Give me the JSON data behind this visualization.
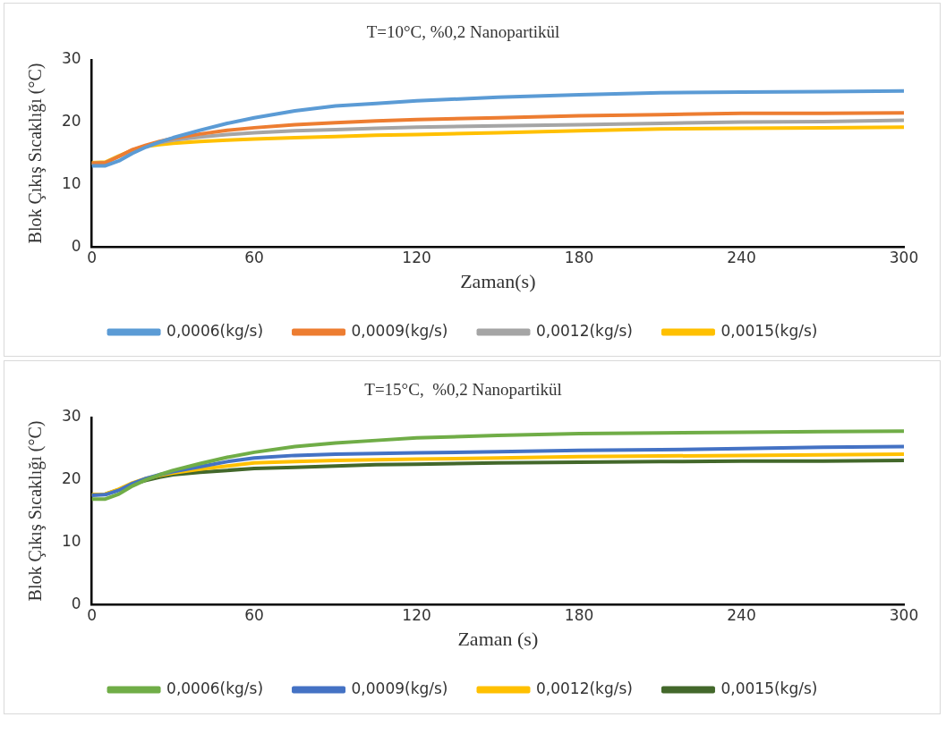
{
  "chart_data": [
    {
      "type": "line",
      "title": "T=10°C, %0,2 Nanopartikül",
      "xlabel": "Zaman(s)",
      "ylabel": "Blok Çıkış Sıcaklığı (°C)",
      "x": [
        0,
        5,
        10,
        15,
        20,
        25,
        30,
        40,
        50,
        60,
        75,
        90,
        105,
        120,
        150,
        180,
        210,
        240,
        270,
        300
      ],
      "xlim": [
        0,
        300
      ],
      "xticks": [
        0,
        60,
        120,
        180,
        240,
        300
      ],
      "ylim": [
        0,
        30
      ],
      "yticks": [
        0,
        10,
        20,
        30
      ],
      "grid": false,
      "legend": "bottom",
      "series": [
        {
          "name": "0,0006(kg/s)",
          "color": "#5b9bd5",
          "values": [
            13.0,
            13.0,
            13.8,
            15.0,
            16.0,
            16.8,
            17.5,
            18.7,
            19.8,
            20.7,
            21.8,
            22.6,
            23.0,
            23.4,
            24.0,
            24.4,
            24.7,
            24.8,
            24.9,
            25.0
          ]
        },
        {
          "name": "0,0009(kg/s)",
          "color": "#ed7d31",
          "values": [
            13.4,
            13.5,
            14.5,
            15.6,
            16.3,
            16.9,
            17.4,
            18.1,
            18.7,
            19.1,
            19.6,
            19.9,
            20.2,
            20.4,
            20.7,
            21.0,
            21.2,
            21.4,
            21.4,
            21.5
          ]
        },
        {
          "name": "0,0012(kg/s)",
          "color": "#a5a5a5",
          "values": [
            13.4,
            13.5,
            14.5,
            15.5,
            16.2,
            16.7,
            17.1,
            17.6,
            18.0,
            18.3,
            18.6,
            18.8,
            19.0,
            19.2,
            19.4,
            19.6,
            19.8,
            20.0,
            20.1,
            20.3
          ]
        },
        {
          "name": "0,0015(kg/s)",
          "color": "#ffc000",
          "values": [
            13.5,
            13.6,
            14.6,
            15.5,
            16.1,
            16.4,
            16.6,
            16.9,
            17.1,
            17.3,
            17.5,
            17.7,
            17.9,
            18.0,
            18.3,
            18.6,
            18.9,
            19.0,
            19.1,
            19.2
          ]
        }
      ]
    },
    {
      "type": "line",
      "title": "T=15°C,  %0,2 Nanopartikül",
      "xlabel": "Zaman (s)",
      "ylabel": "Blok Çıkış Sıcaklığı (°C)",
      "x": [
        0,
        5,
        10,
        15,
        20,
        25,
        30,
        40,
        50,
        60,
        75,
        90,
        105,
        120,
        150,
        180,
        210,
        240,
        270,
        300
      ],
      "xlim": [
        0,
        300
      ],
      "xticks": [
        0,
        60,
        120,
        180,
        240,
        300
      ],
      "ylim": [
        0,
        30
      ],
      "yticks": [
        0,
        10,
        20,
        30
      ],
      "grid": false,
      "legend": "bottom",
      "series": [
        {
          "name": "0,0006(kg/s)",
          "color": "#70ad47",
          "values": [
            16.9,
            16.9,
            17.7,
            19.0,
            20.0,
            20.8,
            21.5,
            22.6,
            23.6,
            24.4,
            25.3,
            25.9,
            26.3,
            26.7,
            27.1,
            27.4,
            27.5,
            27.6,
            27.7,
            27.8
          ]
        },
        {
          "name": "0,0009(kg/s)",
          "color": "#4472c4",
          "values": [
            17.5,
            17.6,
            18.3,
            19.4,
            20.2,
            20.8,
            21.3,
            22.1,
            22.9,
            23.5,
            23.9,
            24.1,
            24.2,
            24.3,
            24.5,
            24.7,
            24.8,
            25.0,
            25.2,
            25.3
          ]
        },
        {
          "name": "0,0012(kg/s)",
          "color": "#ffc000",
          "values": [
            17.6,
            17.7,
            18.5,
            19.5,
            20.2,
            20.7,
            21.1,
            21.7,
            22.2,
            22.7,
            22.9,
            23.1,
            23.2,
            23.3,
            23.5,
            23.7,
            23.8,
            23.9,
            24.0,
            24.1
          ]
        },
        {
          "name": "0,0015(kg/s)",
          "color": "#43682b",
          "values": [
            17.6,
            17.7,
            18.4,
            19.3,
            19.9,
            20.4,
            20.8,
            21.2,
            21.5,
            21.8,
            22.0,
            22.2,
            22.4,
            22.5,
            22.7,
            22.8,
            22.9,
            23.0,
            23.0,
            23.1
          ]
        }
      ]
    }
  ]
}
